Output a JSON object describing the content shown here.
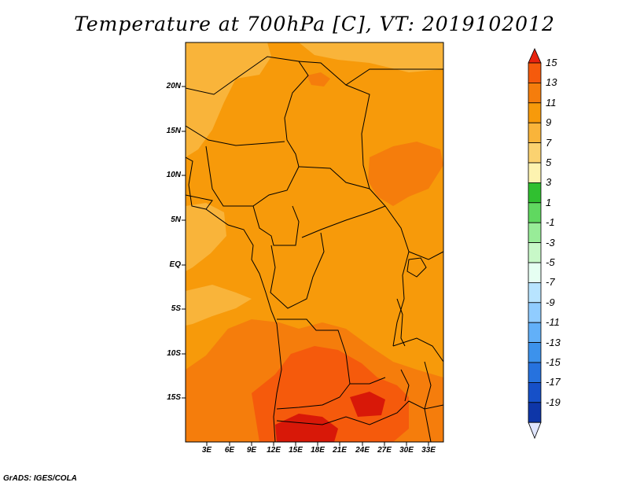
{
  "title": "Temperature at 700hPa [C], VT: 2019102012",
  "y_axis_labels": [
    "20N",
    "15N",
    "10N",
    "5N",
    "EQ",
    "5S",
    "10S",
    "15S"
  ],
  "x_axis_labels": [
    "3E",
    "6E",
    "9E",
    "12E",
    "15E",
    "18E",
    "21E",
    "24E",
    "27E",
    "30E",
    "33E"
  ],
  "colorbar": {
    "labels": [
      "15",
      "13",
      "11",
      "9",
      "7",
      "5",
      "3",
      "1",
      "-1",
      "-3",
      "-5",
      "-7",
      "-9",
      "-11",
      "-13",
      "-15",
      "-17",
      "-19"
    ],
    "colors": [
      "#e8230e",
      "#f55a0c",
      "#f57d0c",
      "#f79a0a",
      "#f9b43a",
      "#fbd270",
      "#fdf3b0",
      "#30c030",
      "#60d860",
      "#98ec98",
      "#c8f8c8",
      "#e6fff2",
      "#b8e4ff",
      "#90ccff",
      "#62b0f8",
      "#3c92ec",
      "#2672de",
      "#1650c8",
      "#0e36a8",
      "#081878"
    ]
  },
  "credit": "GrADS: IGES/COLA",
  "map_colors": {
    "base": "#f79a0a",
    "warm_low": "#f9b43a",
    "warm_mid": "#f57d0c",
    "warm_high": "#f55a0c",
    "hot": "#e8230e",
    "hottest": "#d81808"
  }
}
